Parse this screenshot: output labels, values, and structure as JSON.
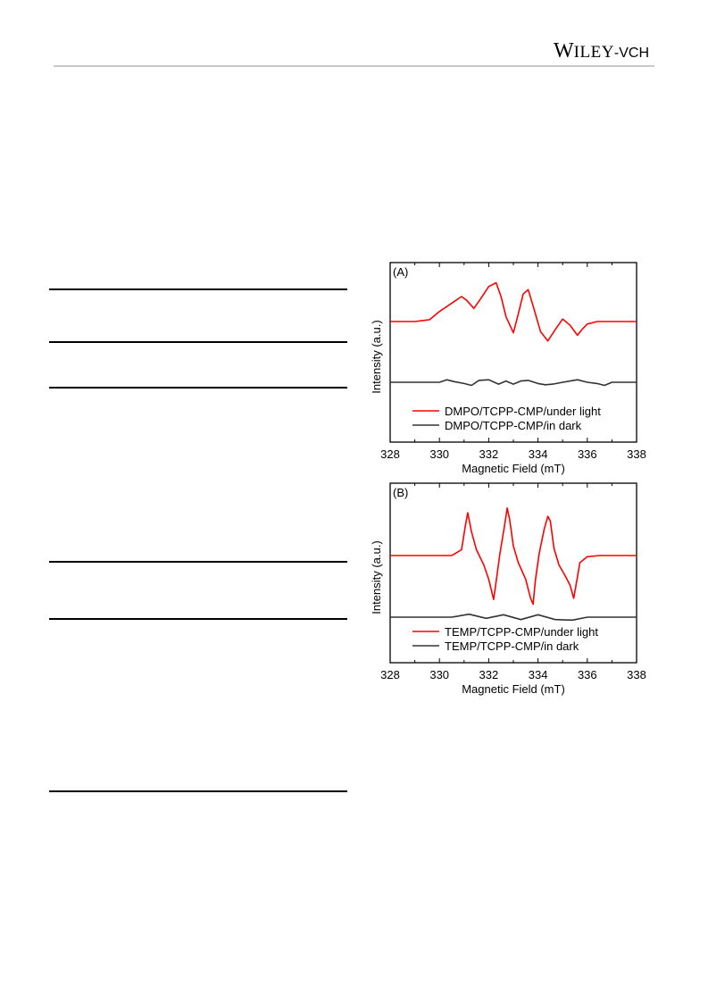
{
  "header": {
    "publisher_logo": "WILEY-VCH"
  },
  "chart_data": [
    {
      "type": "line",
      "panel_label": "(A)",
      "xlabel": "Magnetic Field (mT)",
      "ylabel": "Intensity (a.u.)",
      "xlim": [
        328,
        338
      ],
      "xticks": [
        328,
        330,
        332,
        334,
        336,
        338
      ],
      "y_ticks_shown": false,
      "legend_position": "bottom-center",
      "series": [
        {
          "name": "DMPO/TCPP-CMP/under light",
          "color": "#ff0000",
          "x": [
            328.0,
            329.0,
            329.6,
            330.0,
            330.3,
            330.6,
            330.9,
            331.1,
            331.4,
            331.7,
            332.0,
            332.3,
            332.5,
            332.7,
            333.0,
            333.2,
            333.4,
            333.6,
            333.8,
            334.1,
            334.4,
            334.7,
            335.0,
            335.3,
            335.6,
            335.8,
            336.0,
            336.4,
            337.0,
            338.0
          ],
          "values": [
            0.0,
            0.0,
            0.3,
            1.6,
            2.4,
            3.2,
            4.0,
            3.4,
            2.1,
            3.8,
            5.6,
            6.2,
            4.0,
            0.8,
            -1.8,
            1.2,
            4.4,
            5.1,
            2.5,
            -1.6,
            -3.1,
            -1.3,
            0.4,
            -0.6,
            -2.2,
            -1.2,
            -0.4,
            0.0,
            0.0,
            0.0
          ]
        },
        {
          "name": "DMPO/TCPP-CMP/in dark",
          "color": "#333333",
          "x": [
            328.0,
            330.0,
            330.3,
            330.6,
            331.0,
            331.3,
            331.6,
            332.0,
            332.4,
            332.7,
            333.0,
            333.3,
            333.6,
            334.0,
            334.3,
            334.6,
            335.0,
            335.3,
            335.6,
            336.0,
            336.4,
            336.7,
            337.0,
            338.0
          ],
          "values": [
            0.0,
            0.0,
            0.4,
            0.1,
            -0.2,
            -0.5,
            0.3,
            0.4,
            -0.3,
            0.2,
            -0.3,
            0.2,
            0.3,
            -0.2,
            -0.4,
            -0.3,
            0.0,
            0.2,
            0.4,
            0.0,
            -0.2,
            -0.5,
            0.0,
            0.0
          ]
        }
      ]
    },
    {
      "type": "line",
      "panel_label": "(B)",
      "xlabel": "Magnetic Field (mT)",
      "ylabel": "Intensity (a.u.)",
      "xlim": [
        328,
        338
      ],
      "xticks": [
        328,
        330,
        332,
        334,
        336,
        338
      ],
      "y_ticks_shown": false,
      "legend_position": "bottom-center",
      "series": [
        {
          "name": "TEMP/TCPP-CMP/under light",
          "color": "#ff0000",
          "x": [
            328.0,
            330.5,
            330.9,
            331.05,
            331.15,
            331.3,
            331.5,
            331.8,
            332.0,
            332.2,
            332.3,
            332.45,
            332.65,
            332.75,
            332.85,
            333.0,
            333.2,
            333.5,
            333.7,
            333.8,
            333.9,
            334.05,
            334.25,
            334.4,
            334.5,
            334.65,
            334.85,
            335.1,
            335.3,
            335.45,
            335.55,
            335.7,
            336.0,
            336.5,
            338.0
          ],
          "values": [
            0.0,
            0.0,
            0.5,
            2.5,
            3.6,
            2.0,
            0.5,
            -0.8,
            -2.0,
            -3.7,
            -2.2,
            0.1,
            2.6,
            4.0,
            3.0,
            0.8,
            -0.6,
            -2.0,
            -3.6,
            -4.1,
            -2.0,
            0.2,
            2.2,
            3.3,
            2.9,
            0.6,
            -0.8,
            -1.7,
            -2.5,
            -3.6,
            -2.4,
            -0.6,
            -0.1,
            0.0,
            0.0
          ]
        },
        {
          "name": "TEMP/TCPP-CMP/in dark",
          "color": "#333333",
          "x": [
            328.0,
            330.5,
            331.2,
            331.9,
            332.6,
            333.3,
            334.0,
            334.7,
            335.4,
            336.0,
            338.0
          ],
          "values": [
            0.0,
            0.0,
            0.25,
            -0.1,
            0.2,
            -0.2,
            0.2,
            -0.2,
            -0.25,
            0.0,
            0.0
          ]
        }
      ]
    }
  ]
}
